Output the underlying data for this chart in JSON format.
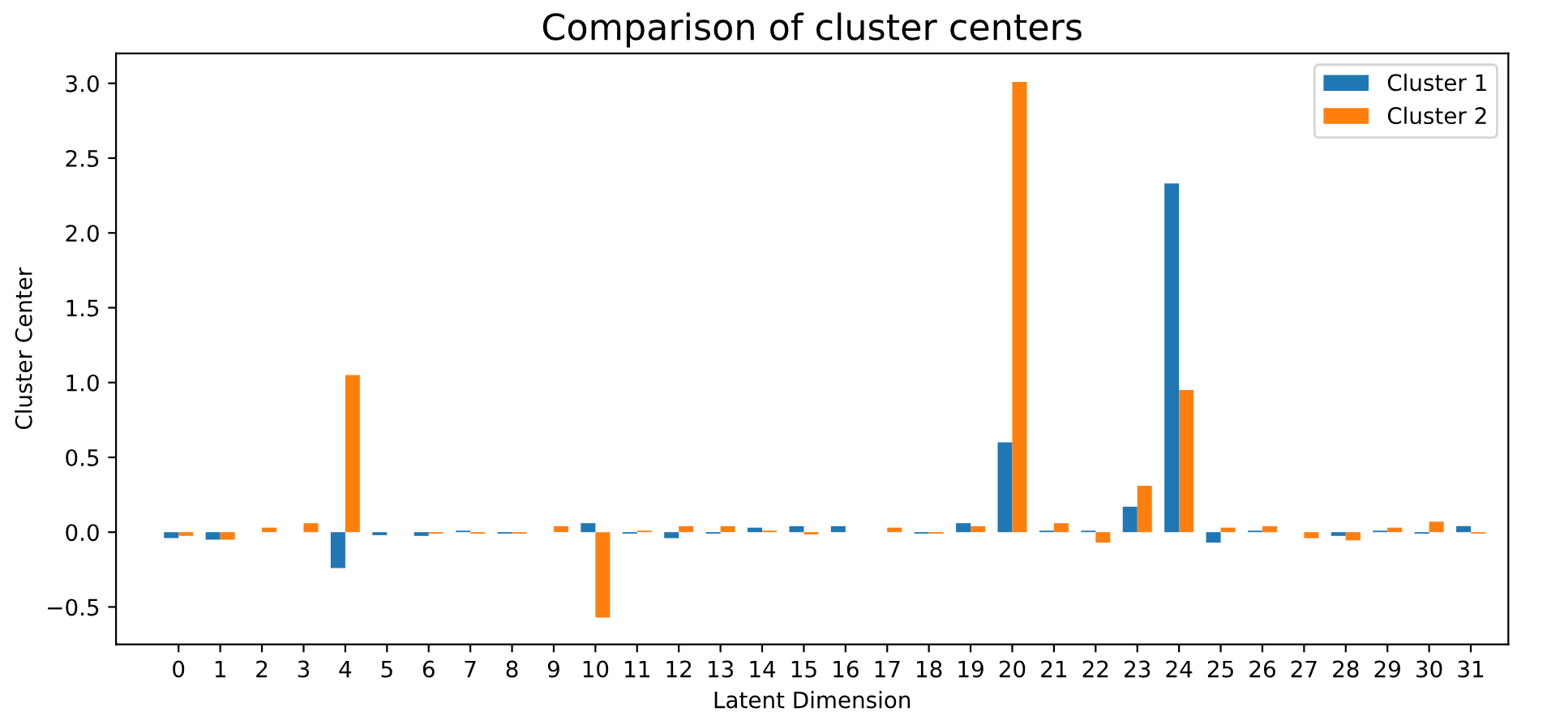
{
  "chart_data": {
    "type": "bar",
    "title": "Comparison of cluster centers",
    "xlabel": "Latent Dimension",
    "ylabel": "Cluster Center",
    "categories": [
      "0",
      "1",
      "2",
      "3",
      "4",
      "5",
      "6",
      "7",
      "8",
      "9",
      "10",
      "11",
      "12",
      "13",
      "14",
      "15",
      "16",
      "17",
      "18",
      "19",
      "20",
      "21",
      "22",
      "23",
      "24",
      "25",
      "26",
      "27",
      "28",
      "29",
      "30",
      "31"
    ],
    "series": [
      {
        "name": "Cluster 1",
        "color": "#1f77b4",
        "values": [
          -0.04,
          -0.05,
          0,
          0,
          -0.24,
          -0.02,
          -0.025,
          0.01,
          -0.01,
          0,
          0.06,
          -0.01,
          -0.04,
          -0.01,
          0.03,
          0.04,
          0.04,
          0,
          -0.01,
          0.06,
          0.6,
          0.01,
          0.01,
          0.17,
          2.33,
          -0.07,
          0.01,
          0,
          -0.025,
          0.01,
          -0.01,
          0.04
        ]
      },
      {
        "name": "Cluster 2",
        "color": "#ff7f0e",
        "values": [
          -0.025,
          -0.05,
          0.03,
          0.06,
          1.05,
          0,
          -0.01,
          -0.01,
          -0.01,
          0.04,
          -0.57,
          0.01,
          0.04,
          0.04,
          0.01,
          -0.015,
          0,
          0.03,
          -0.01,
          0.04,
          3.01,
          0.06,
          -0.07,
          0.31,
          0.95,
          0.03,
          0.04,
          -0.04,
          -0.055,
          0.03,
          0.07,
          -0.01
        ]
      }
    ],
    "ylim": [
      -0.75,
      3.2
    ],
    "yticks": [
      {
        "value": -0.5,
        "label": "−0.5"
      },
      {
        "value": 0,
        "label": "0.0"
      },
      {
        "value": 0.5,
        "label": "0.5"
      },
      {
        "value": 1,
        "label": "1.0"
      },
      {
        "value": 1.5,
        "label": "1.5"
      },
      {
        "value": 2,
        "label": "2.0"
      },
      {
        "value": 2.5,
        "label": "2.5"
      },
      {
        "value": 3,
        "label": "3.0"
      }
    ],
    "legend": "top right",
    "grid": false
  }
}
